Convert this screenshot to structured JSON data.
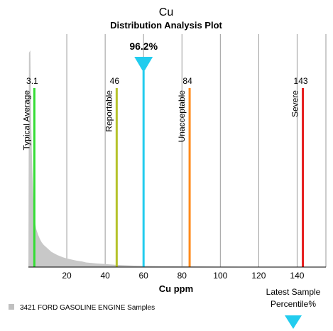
{
  "chart_data": {
    "type": "area",
    "title": "Cu",
    "subtitle": "Distribution Analysis Plot",
    "xlabel": "Cu ppm",
    "xlim": [
      0,
      155
    ],
    "x_ticks": [
      20,
      40,
      60,
      80,
      100,
      120,
      140
    ],
    "grid_vertical": true,
    "distribution": {
      "name": "3421 FORD GASOLINE ENGINE Samples",
      "color": "#c8c8c8",
      "x": [
        0,
        0.3,
        1,
        1.5,
        2,
        2.5,
        3,
        4,
        5,
        6,
        7,
        8,
        10,
        12,
        15,
        18,
        20,
        22,
        25,
        28,
        30,
        35,
        40,
        45,
        50,
        55,
        60,
        70,
        80,
        100,
        120,
        140,
        155
      ],
      "y": [
        0,
        0.92,
        0.93,
        0.6,
        0.42,
        0.3,
        0.22,
        0.165,
        0.14,
        0.12,
        0.105,
        0.095,
        0.08,
        0.065,
        0.052,
        0.042,
        0.037,
        0.033,
        0.028,
        0.024,
        0.02,
        0.016,
        0.013,
        0.01,
        0.008,
        0.006,
        0.005,
        0.004,
        0.003,
        0.002,
        0.001,
        0.0005,
        0
      ]
    },
    "thresholds": [
      {
        "label": "Typical Average",
        "value_label": "3.1",
        "value": 3.1,
        "color": "#33dd33"
      },
      {
        "label": "Reportable",
        "value_label": "46",
        "value": 46,
        "color": "#b5c22a"
      },
      {
        "label": "Unacceptable",
        "value_label": "84",
        "value": 84,
        "color": "#ff8a1a"
      },
      {
        "label": "Severe",
        "value_label": "143",
        "value": 143,
        "color": "#e61c1c"
      }
    ],
    "latest_sample": {
      "value": 60,
      "percentile_label": "96.2%",
      "color": "#22ccee"
    },
    "legend": {
      "label": "3421 FORD GASOLINE ENGINE Samples",
      "position": "bottom-left",
      "color": "#c0c0c0"
    },
    "latest_sample_caption": [
      "Latest Sample",
      "Percentile%"
    ]
  }
}
